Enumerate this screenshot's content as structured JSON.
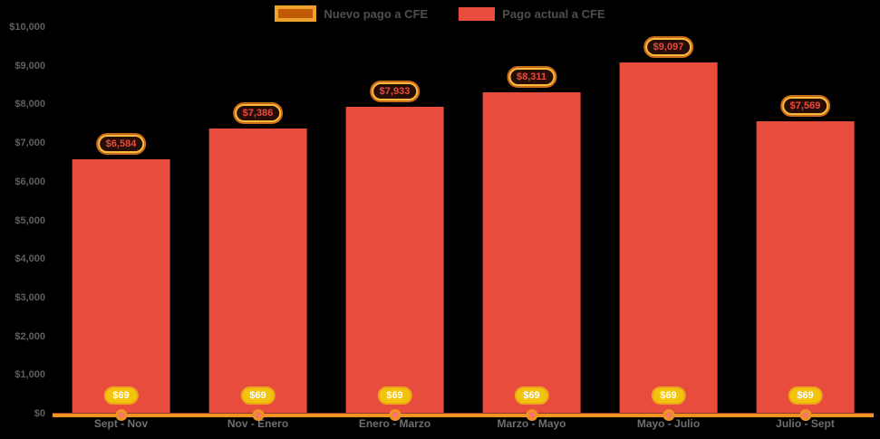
{
  "legend": {
    "items": [
      {
        "label": "Nuevo pago a CFE",
        "swatch_fill": "#c05a04",
        "swatch_border": "#eda22d",
        "type": "line"
      },
      {
        "label": "Pago actual a CFE",
        "swatch_fill": "#e74c3c",
        "swatch_border": "",
        "type": "bar"
      }
    ]
  },
  "chart_data": {
    "type": "bar",
    "title": "",
    "xlabel": "",
    "ylabel": "",
    "categories": [
      "Sept - Nov",
      "Nov - Enero",
      "Enero - Marzo",
      "Marzo - Mayo",
      "Mayo - Julio",
      "Julio - Sept"
    ],
    "series": [
      {
        "name": "Nuevo pago a CFE",
        "type": "line",
        "color": "#f0931f",
        "marker_fill": "#f4796b",
        "badge_fill": "#f2c40e",
        "badge_border": "#eda618",
        "values": [
          69,
          69,
          69,
          69,
          69,
          69
        ],
        "labels": [
          "$69",
          "$69",
          "$69",
          "$69",
          "$69",
          "$69"
        ]
      },
      {
        "name": "Pago actual a CFE",
        "type": "bar",
        "color": "#e74c3c",
        "values": [
          6584,
          7386,
          7933,
          8311,
          9097,
          7569
        ],
        "labels": [
          "$6,584",
          "$7,386",
          "$7,933",
          "$8,311",
          "$9,097",
          "$7,569"
        ]
      }
    ],
    "ylim": [
      0,
      10000
    ],
    "y_tick_values": [
      0,
      1000,
      2000,
      3000,
      4000,
      5000,
      6000,
      7000,
      8000,
      9000,
      10000
    ],
    "y_tick_labels": [
      "$0",
      "$1,000",
      "$2,000",
      "$3,000",
      "$4,000",
      "$5,000",
      "$6,000",
      "$7,000",
      "$8,000",
      "$9,000",
      "$10,000"
    ],
    "grid": false,
    "legend_position": "top",
    "background": "#000000"
  }
}
